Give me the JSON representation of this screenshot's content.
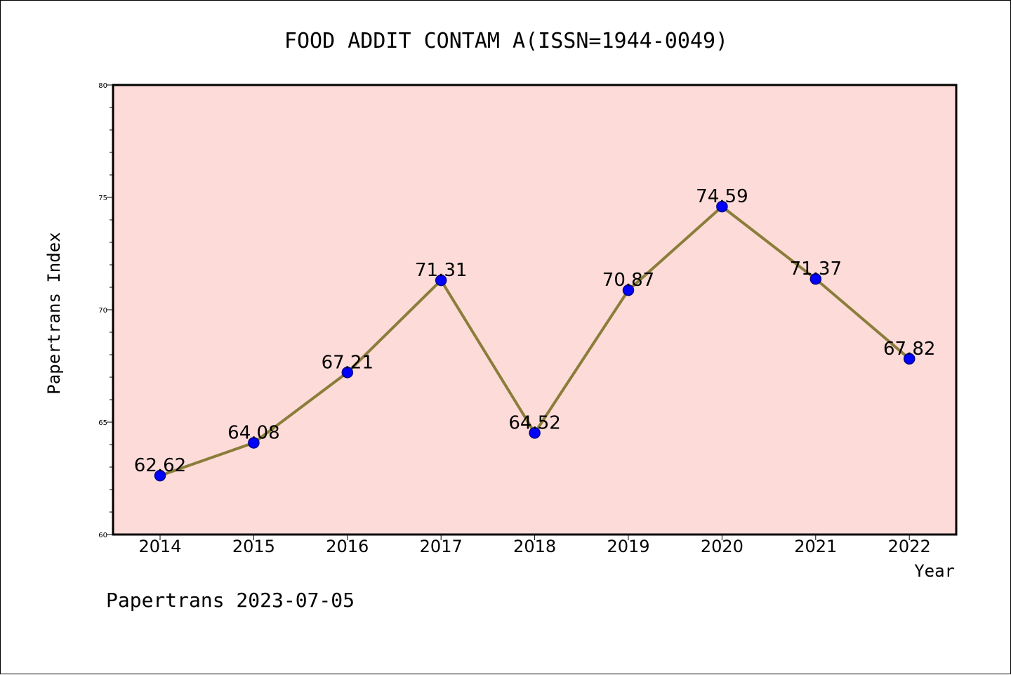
{
  "chart_data": {
    "type": "line",
    "title": "FOOD ADDIT CONTAM A(ISSN=1944-0049)",
    "xlabel": "Year",
    "ylabel": "Papertrans Index",
    "categories": [
      "2014",
      "2015",
      "2016",
      "2017",
      "2018",
      "2019",
      "2020",
      "2021",
      "2022"
    ],
    "series": [
      {
        "values": [
          62.62,
          64.08,
          67.21,
          71.31,
          64.52,
          70.87,
          74.59,
          71.37,
          67.82
        ],
        "labels": [
          "62.62",
          "64.08",
          "67.21",
          "71.31",
          "64.52",
          "70.87",
          "74.59",
          "71.37",
          "67.82"
        ]
      }
    ],
    "ylim": [
      60,
      80
    ],
    "yticks": [
      "60",
      "65",
      "70",
      "75",
      "80"
    ],
    "yminor_step": 1,
    "grid": false,
    "legend": "none",
    "colors": {
      "plot_background": "#fddbd8",
      "line": "#8b7d3a",
      "marker_fill": "#0000ff",
      "marker_edge": "#00008b"
    }
  },
  "footer": "Papertrans 2023-07-05"
}
